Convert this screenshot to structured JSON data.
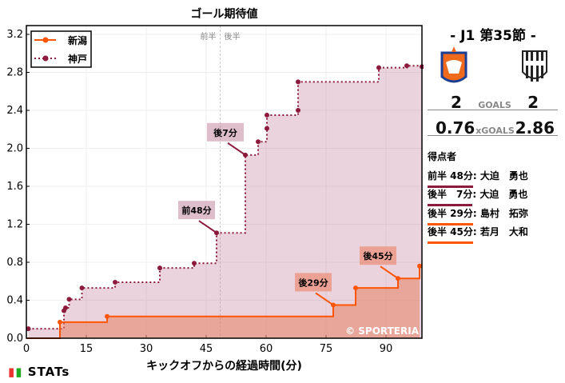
{
  "chart_data": {
    "type": "line",
    "title": "ゴール期待値",
    "xlabel": "キックオフからの経過時間(分)",
    "ylabel": "",
    "xlim": [
      0,
      99
    ],
    "ylim": [
      0,
      3.3
    ],
    "xticks": [
      0,
      15,
      30,
      45,
      60,
      75,
      90
    ],
    "yticks": [
      "0.0",
      "0.4",
      "0.8",
      "1.2",
      "1.6",
      "2.0",
      "2.4",
      "2.8",
      "3.2"
    ],
    "ytick_values": [
      0,
      0.4,
      0.8,
      1.2,
      1.6,
      2.0,
      2.4,
      2.8,
      3.2
    ],
    "half_marker": {
      "x": 48.5,
      "labels": [
        "前半",
        "後半"
      ]
    },
    "legend": "top-left",
    "series": [
      {
        "name": "新潟",
        "color": "#ff5500",
        "style": "solid",
        "points": [
          [
            0,
            0
          ],
          [
            8.4,
            0.17
          ],
          [
            20.2,
            0.23
          ],
          [
            76.8,
            0.35
          ],
          [
            82.4,
            0.53
          ],
          [
            93,
            0.63
          ],
          [
            98.4,
            0.76
          ]
        ]
      },
      {
        "name": "神戸",
        "color": "#8b1a3c",
        "style": "dotted",
        "points": [
          [
            0.5,
            0.1
          ],
          [
            9.4,
            0.29
          ],
          [
            9.8,
            0.32
          ],
          [
            10.7,
            0.41
          ],
          [
            13.9,
            0.53
          ],
          [
            22.2,
            0.59
          ],
          [
            33.4,
            0.74
          ],
          [
            42,
            0.79
          ],
          [
            47.6,
            1.11
          ],
          [
            54.8,
            1.93
          ],
          [
            58,
            2.07
          ],
          [
            60.2,
            2.21
          ],
          [
            60.2,
            2.35
          ],
          [
            68,
            2.4
          ],
          [
            68,
            2.7
          ],
          [
            88.2,
            2.85
          ],
          [
            95.2,
            2.87
          ],
          [
            99,
            2.86
          ]
        ]
      }
    ],
    "annotations": [
      {
        "text": "前48分",
        "x": 47.6,
        "y": 1.11,
        "series": 1
      },
      {
        "text": "後7分",
        "x": 54.8,
        "y": 1.93,
        "series": 1
      },
      {
        "text": "後29分",
        "x": 76.8,
        "y": 0.35,
        "series": 0
      },
      {
        "text": "後45分",
        "x": 93,
        "y": 0.63,
        "series": 0
      }
    ],
    "watermark": "© SPORTERIA"
  },
  "match": {
    "round": "-  J1 第35節  -",
    "home_goals": "2",
    "away_goals": "2",
    "goals_label": "GOALS",
    "home_xg": "0.76",
    "away_xg": "2.86",
    "xg_label": "xGOALS"
  },
  "scorers": {
    "title": "得点者",
    "items": [
      {
        "time": "前半 48分",
        "name": "大迫　勇也",
        "color": "#8b1a3c"
      },
      {
        "time": "後半　7分",
        "name": "大迫　勇也",
        "color": "#8b1a3c"
      },
      {
        "time": "後半 29分",
        "name": "島村　拓弥",
        "color": "#ff5500"
      },
      {
        "time": "後半 45分",
        "name": "若月　大和",
        "color": "#ff5500"
      }
    ]
  },
  "footer": {
    "brand": "STATs"
  }
}
